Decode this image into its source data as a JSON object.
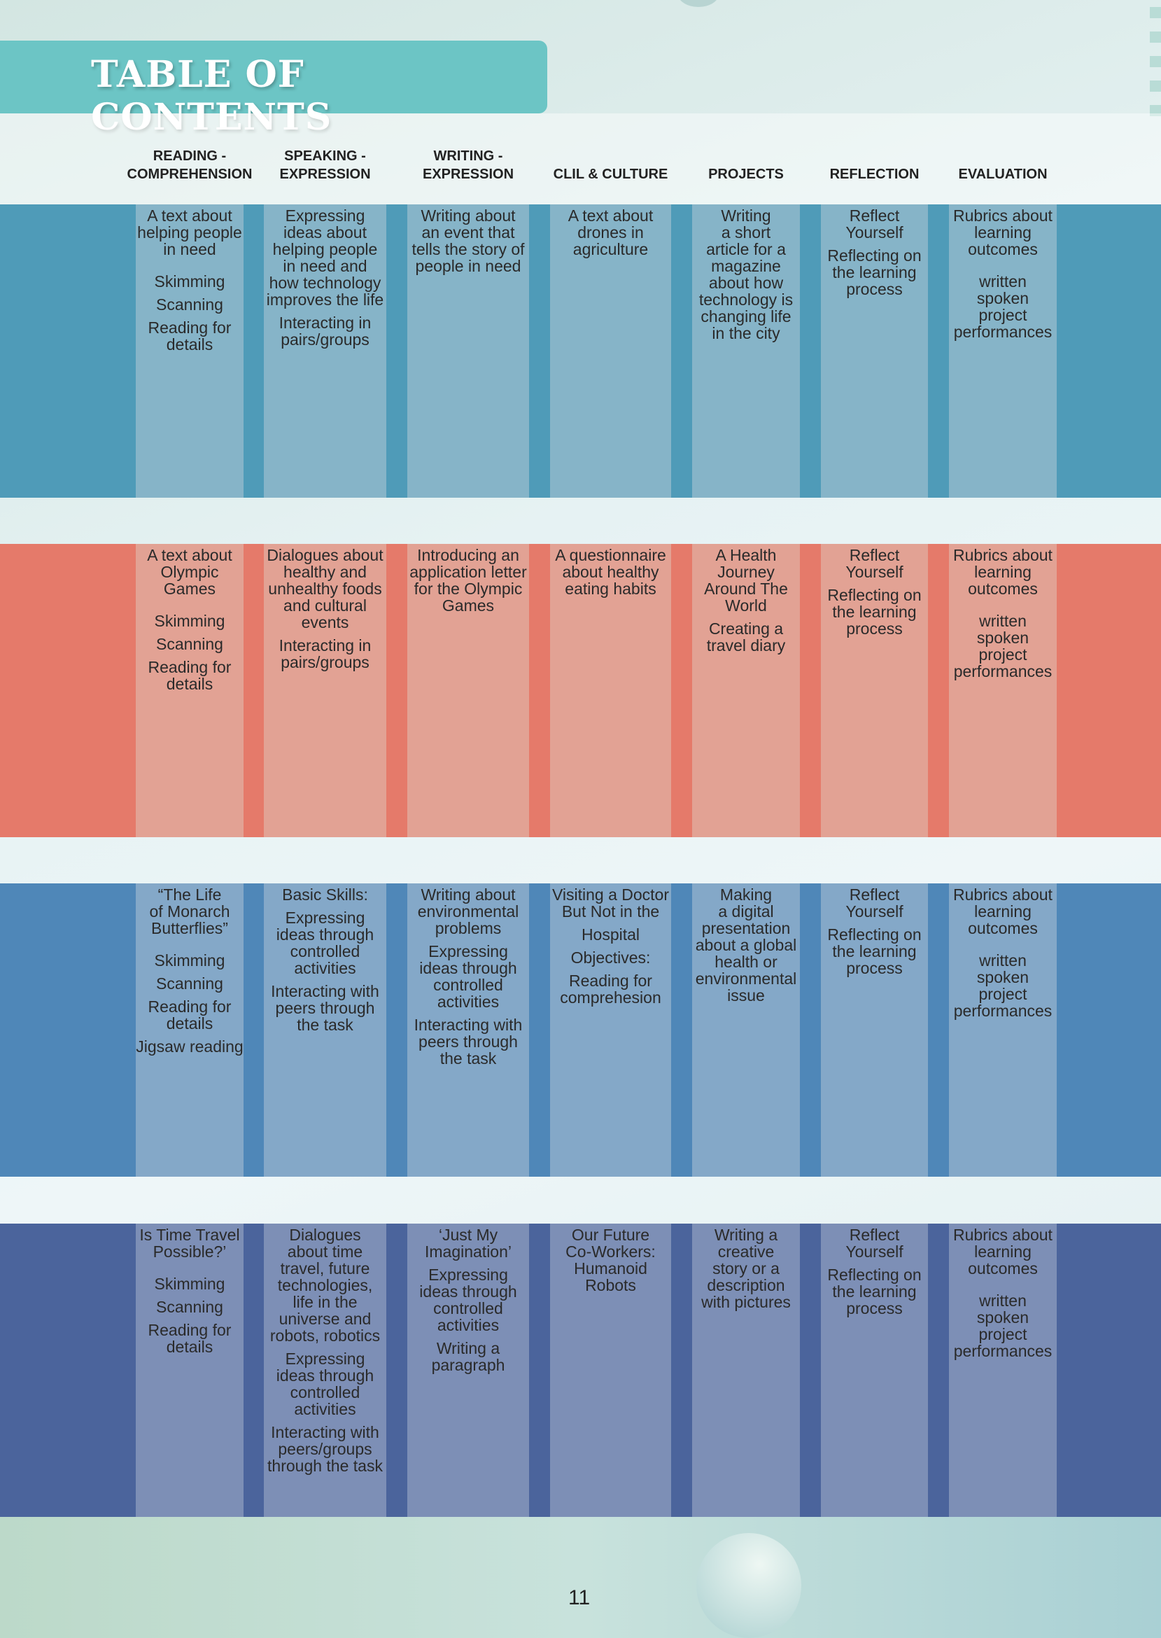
{
  "title": "TABLE OF CONTENTS",
  "headers": [
    "READING -\nCOMPREHENSION",
    "SPEAKING -\nEXPRESSION",
    "WRITING -\nEXPRESSION",
    "CLIL & CULTURE",
    "PROJECTS",
    "REFLECTION",
    "EVALUATION"
  ],
  "colors": {
    "band1": "#4f9bb8",
    "cell1": "#86b4c8",
    "band2": "#e57a6a",
    "cell2": "#e2a294",
    "band3": "#4f87b8",
    "cell3": "#84a8c8",
    "band4": "#4b649c",
    "cell4": "#7d8fb6"
  },
  "units": [
    {
      "cells": [
        [
          "A text about\nhelping people\nin need",
          "Skimming",
          "Scanning",
          "Reading for\ndetails"
        ],
        [
          "Expressing\nideas about\nhelping people\nin need and\nhow technology\nimproves the life",
          "Interacting in\npairs/groups"
        ],
        [
          "Writing about\nan event that\ntells the story of\npeople in need"
        ],
        [
          "A text about\ndrones in\nagriculture"
        ],
        [
          "Writing\na short\narticle for a\nmagazine\nabout how\ntechnology is\nchanging life\nin the city"
        ],
        [
          "Reflect\nYourself",
          "Reflecting on\nthe learning\nprocess"
        ],
        [
          "Rubrics about\nlearning\noutcomes",
          "written\nspoken\nproject\nperformances"
        ]
      ]
    },
    {
      "cells": [
        [
          "A text about\nOlympic\nGames",
          "Skimming",
          "Scanning",
          "Reading for\ndetails"
        ],
        [
          "Dialogues about\nhealthy and\nunhealthy foods\nand cultural\nevents",
          "Interacting in\npairs/groups"
        ],
        [
          "Introducing an\napplication letter\nfor the Olympic\nGames"
        ],
        [
          "A questionnaire\nabout healthy\neating habits"
        ],
        [
          "A Health\nJourney\nAround The\nWorld",
          "Creating a\ntravel diary"
        ],
        [
          "Reflect\nYourself",
          "Reflecting on\nthe learning\nprocess"
        ],
        [
          "Rubrics about\nlearning\noutcomes",
          "written\nspoken\nproject\nperformances"
        ]
      ]
    },
    {
      "cells": [
        [
          "“The Life\nof Monarch\nButterflies”",
          "Skimming",
          "Scanning",
          "Reading for\ndetails",
          "Jigsaw reading"
        ],
        [
          "Basic Skills:",
          "Expressing\nideas through\ncontrolled\nactivities",
          "Interacting with\npeers through\nthe task"
        ],
        [
          "Writing about\nenvironmental\nproblems",
          "Expressing\nideas through\ncontrolled\nactivities",
          "Interacting with\npeers through\nthe task"
        ],
        [
          "Visiting a Doctor\nBut Not in the",
          "Hospital",
          "Objectives:",
          "Reading for\ncomprehesion"
        ],
        [
          "Making\na digital\npresentation\nabout a global\nhealth or\nenvironmental\nissue"
        ],
        [
          "Reflect\nYourself",
          "Reflecting on\nthe learning\nprocess"
        ],
        [
          "Rubrics about\nlearning\noutcomes",
          "written\nspoken\nproject\nperformances"
        ]
      ]
    },
    {
      "cells": [
        [
          "Is Time Travel\nPossible?’",
          "Skimming",
          "Scanning",
          "Reading for\ndetails"
        ],
        [
          "Dialogues\nabout time\ntravel, future\ntechnologies,\nlife in the\nuniverse and\nrobots, robotics",
          "Expressing\nideas through\ncontrolled\nactivities",
          "Interacting with\npeers/groups\nthrough the task"
        ],
        [
          "‘Just My\nImagination’",
          "Expressing\nideas through\ncontrolled\nactivities",
          "Writing a\nparagraph"
        ],
        [
          "Our Future\nCo-Workers:\nHumanoid\nRobots"
        ],
        [
          "Writing a\ncreative\nstory or a\ndescription\nwith pictures"
        ],
        [
          "Reflect\nYourself",
          "Reflecting on\nthe learning\nprocess"
        ],
        [
          "Rubrics about\nlearning\noutcomes",
          "written\nspoken\nproject\nperformances"
        ]
      ]
    }
  ],
  "page_number": "11"
}
